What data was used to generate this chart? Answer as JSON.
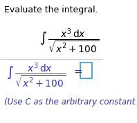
{
  "title": "Evaluate the integral.",
  "integral_display": "\\int \\frac{x^3\\,dx}{\\sqrt{x^2+100}}",
  "answer_label": "\\int \\frac{x^3\\,dx}{\\sqrt{x^2+100}}\\;=",
  "use_c_note": "(Use C as the arbitrary constant.)",
  "bg_color": "#ffffff",
  "title_color": "#000000",
  "integral_color": "#000000",
  "answer_color": "#3333cc",
  "note_color": "#3333cc",
  "divider_color": "#cccccc",
  "box_color": "#3399cc",
  "title_fontsize": 9,
  "integral_fontsize": 10,
  "answer_fontsize": 10,
  "note_fontsize": 8.5
}
